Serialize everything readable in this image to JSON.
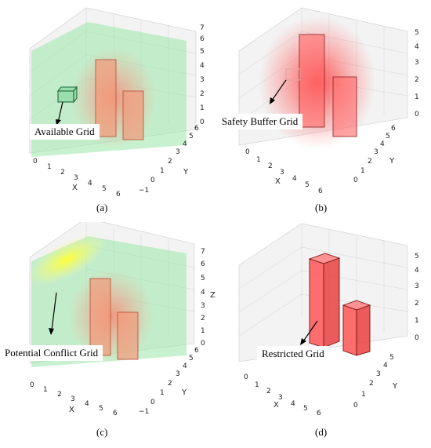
{
  "panels": [
    {
      "caption": "(a)",
      "callout": "Available Grid",
      "x_ticks": [
        "0",
        "1",
        "2",
        "3",
        "4",
        "5",
        "6"
      ],
      "y_ticks": [
        "−1",
        "0",
        "1",
        "2",
        "3",
        "4",
        "5",
        "6"
      ],
      "z_ticks": [
        "0",
        "1",
        "2",
        "3",
        "4",
        "5",
        "6",
        "7"
      ],
      "x_label": "X",
      "y_label": "Y",
      "z_label": ""
    },
    {
      "caption": "(b)",
      "callout": "Safety  Buffer  Grid",
      "x_ticks": [
        "0",
        "1",
        "2",
        "3",
        "4",
        "5",
        "6"
      ],
      "y_ticks": [
        "0",
        "1",
        "2",
        "3",
        "4",
        "5",
        "6"
      ],
      "z_ticks": [
        "0",
        "1",
        "2",
        "3",
        "4",
        "5"
      ],
      "x_label": "X",
      "y_label": "Y",
      "z_label": ""
    },
    {
      "caption": "(c)",
      "callout": "Potential  Conflict  Grid",
      "x_ticks": [
        "0",
        "1",
        "2",
        "3",
        "4",
        "5",
        "6"
      ],
      "y_ticks": [
        "−1",
        "0",
        "1",
        "2",
        "3",
        "4",
        "5",
        "6"
      ],
      "z_ticks": [
        "0",
        "1",
        "2",
        "3",
        "4",
        "5",
        "6",
        "7"
      ],
      "x_label": "X",
      "y_label": "Y",
      "z_label": "Z"
    },
    {
      "caption": "(d)",
      "callout": "Restricted  Grid",
      "x_ticks": [
        "0",
        "1",
        "2",
        "3",
        "4",
        "5",
        "6"
      ],
      "y_ticks": [
        "0",
        "1",
        "2",
        "3",
        "4",
        "5"
      ],
      "z_ticks": [
        "0",
        "1",
        "2",
        "3",
        "4",
        "5"
      ],
      "x_label": "X",
      "y_label": "Y",
      "z_label": ""
    }
  ]
}
